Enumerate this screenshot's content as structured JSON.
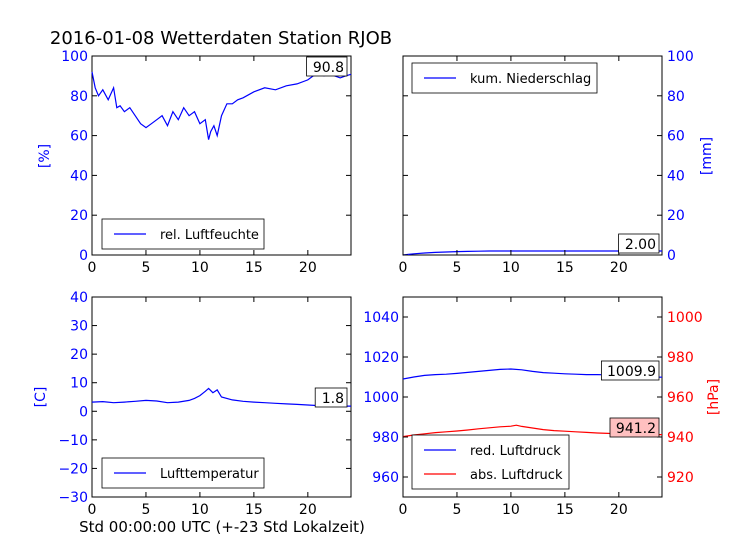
{
  "title": "2016-01-08 Wetterdaten Station RJOB",
  "xlabel": "Std 00:00:00 UTC (+-23 Std Lokalzeit)",
  "colors": {
    "blue": "#0000ff",
    "red": "#ff0000",
    "callout_red_bg": "#ffc0c0",
    "callout_bg": "#ffffff"
  },
  "chart_data": [
    {
      "type": "line",
      "panel": "top-left",
      "ylabel": "[%]",
      "xlim": [
        0,
        24
      ],
      "ylim": [
        0,
        100
      ],
      "xticks": [
        0,
        5,
        10,
        15,
        20
      ],
      "yticks": [
        0,
        20,
        40,
        60,
        80,
        100
      ],
      "legend_position": "lower-left",
      "callout": {
        "text": "90.8"
      },
      "series": [
        {
          "name": "rel. Luftfeuchte",
          "color": "#0000ff",
          "x": [
            0,
            0.3,
            0.6,
            1.0,
            1.5,
            2.0,
            2.3,
            2.6,
            3.0,
            3.5,
            4.0,
            4.5,
            5.0,
            5.5,
            6.0,
            6.5,
            7.0,
            7.5,
            8.0,
            8.5,
            9.0,
            9.5,
            10.0,
            10.5,
            10.8,
            11.0,
            11.3,
            11.6,
            12.0,
            12.5,
            13.0,
            13.5,
            14.0,
            15.0,
            16.0,
            17.0,
            18.0,
            19.0,
            20.0,
            20.5,
            21.0,
            21.5,
            22.0,
            22.5,
            23.0,
            23.5,
            24.0
          ],
          "y": [
            92,
            84,
            80,
            83,
            78,
            84,
            74,
            75,
            72,
            74,
            70,
            66,
            64,
            66,
            68,
            70,
            65,
            72,
            68,
            74,
            70,
            72,
            66,
            68,
            58,
            62,
            65,
            60,
            70,
            76,
            76,
            78,
            79,
            82,
            84,
            83,
            85,
            86,
            88,
            90,
            91,
            90,
            91,
            90,
            89,
            90,
            90.8
          ]
        }
      ]
    },
    {
      "type": "line",
      "panel": "top-right",
      "ylabel": "[mm]",
      "xlim": [
        0,
        24
      ],
      "ylim": [
        0,
        100
      ],
      "xticks": [
        0,
        5,
        10,
        15,
        20
      ],
      "yticks": [
        0,
        20,
        40,
        60,
        80,
        100
      ],
      "legend_position": "upper-left",
      "callout": {
        "text": "2.00"
      },
      "series": [
        {
          "name": "kum. Niederschlag",
          "color": "#0000ff",
          "x": [
            0,
            0.5,
            1.0,
            2.0,
            3.0,
            4.0,
            5.0,
            6.0,
            7.0,
            8.0,
            10.0,
            12.0,
            15.0,
            18.0,
            20.0,
            22.0,
            24.0
          ],
          "y": [
            0,
            0.3,
            0.6,
            1.0,
            1.3,
            1.5,
            1.7,
            1.8,
            1.9,
            2.0,
            2.0,
            2.0,
            2.0,
            2.0,
            2.0,
            2.0,
            2.0
          ]
        }
      ]
    },
    {
      "type": "line",
      "panel": "bottom-left",
      "ylabel": "[C]",
      "xlim": [
        0,
        24
      ],
      "ylim": [
        -30,
        40
      ],
      "xticks": [
        0,
        5,
        10,
        15,
        20
      ],
      "yticks": [
        -30,
        -20,
        -10,
        0,
        10,
        20,
        30,
        40
      ],
      "legend_position": "lower-left",
      "callout": {
        "text": "1.8"
      },
      "series": [
        {
          "name": "Lufttemperatur",
          "color": "#0000ff",
          "x": [
            0,
            1,
            2,
            3,
            4,
            5,
            6,
            7,
            8,
            9,
            9.5,
            10,
            10.5,
            10.8,
            11.2,
            11.6,
            12,
            13,
            14,
            15,
            16,
            17,
            18,
            19,
            20,
            21,
            22,
            23,
            24
          ],
          "y": [
            3.2,
            3.4,
            3.0,
            3.2,
            3.5,
            3.8,
            3.6,
            3.0,
            3.2,
            3.8,
            4.5,
            5.5,
            7.0,
            8.0,
            6.5,
            7.5,
            5.0,
            4.0,
            3.5,
            3.2,
            3.0,
            2.8,
            2.6,
            2.4,
            2.2,
            2.0,
            1.9,
            1.8,
            1.8
          ]
        }
      ]
    },
    {
      "type": "line",
      "panel": "bottom-right",
      "ylabel_right": "[hPa]",
      "xlim": [
        0,
        24
      ],
      "ylim_left": [
        950,
        1050
      ],
      "ylim_right": [
        910,
        1010
      ],
      "xticks": [
        0,
        5,
        10,
        15,
        20
      ],
      "yticks_left": [
        960,
        980,
        1000,
        1020,
        1040
      ],
      "yticks_right": [
        920,
        940,
        960,
        980,
        1000
      ],
      "legend_position": "lower-left",
      "callouts": [
        {
          "text": "1009.9"
        },
        {
          "text": "941.2"
        }
      ],
      "series": [
        {
          "name": "red. Luftdruck",
          "color": "#0000ff",
          "axis": "left",
          "x": [
            0,
            1,
            2,
            3,
            4,
            5,
            6,
            7,
            8,
            9,
            10,
            11,
            12,
            13,
            14,
            15,
            16,
            17,
            18,
            19,
            20,
            21,
            22,
            23,
            24
          ],
          "y": [
            1009.0,
            1010.0,
            1010.8,
            1011.2,
            1011.4,
            1011.8,
            1012.3,
            1012.8,
            1013.3,
            1013.8,
            1014.0,
            1013.6,
            1012.8,
            1012.2,
            1011.9,
            1011.6,
            1011.4,
            1011.2,
            1011.2,
            1011.1,
            1010.9,
            1010.6,
            1010.3,
            1010.0,
            1009.9
          ]
        },
        {
          "name": "abs. Luftdruck",
          "color": "#ff0000",
          "axis": "right",
          "x": [
            0,
            1,
            2,
            3,
            4,
            5,
            6,
            7,
            8,
            9,
            10,
            10.5,
            11,
            12,
            13,
            14,
            15,
            16,
            17,
            18,
            19,
            20,
            21,
            22,
            23,
            24
          ],
          "y": [
            940.2,
            941.0,
            941.6,
            942.2,
            942.6,
            943.0,
            943.5,
            944.1,
            944.6,
            945.1,
            945.4,
            945.9,
            945.3,
            944.5,
            943.7,
            943.2,
            942.9,
            942.6,
            942.3,
            942.0,
            941.8,
            941.6,
            941.4,
            941.3,
            941.2,
            941.2
          ]
        }
      ]
    }
  ]
}
